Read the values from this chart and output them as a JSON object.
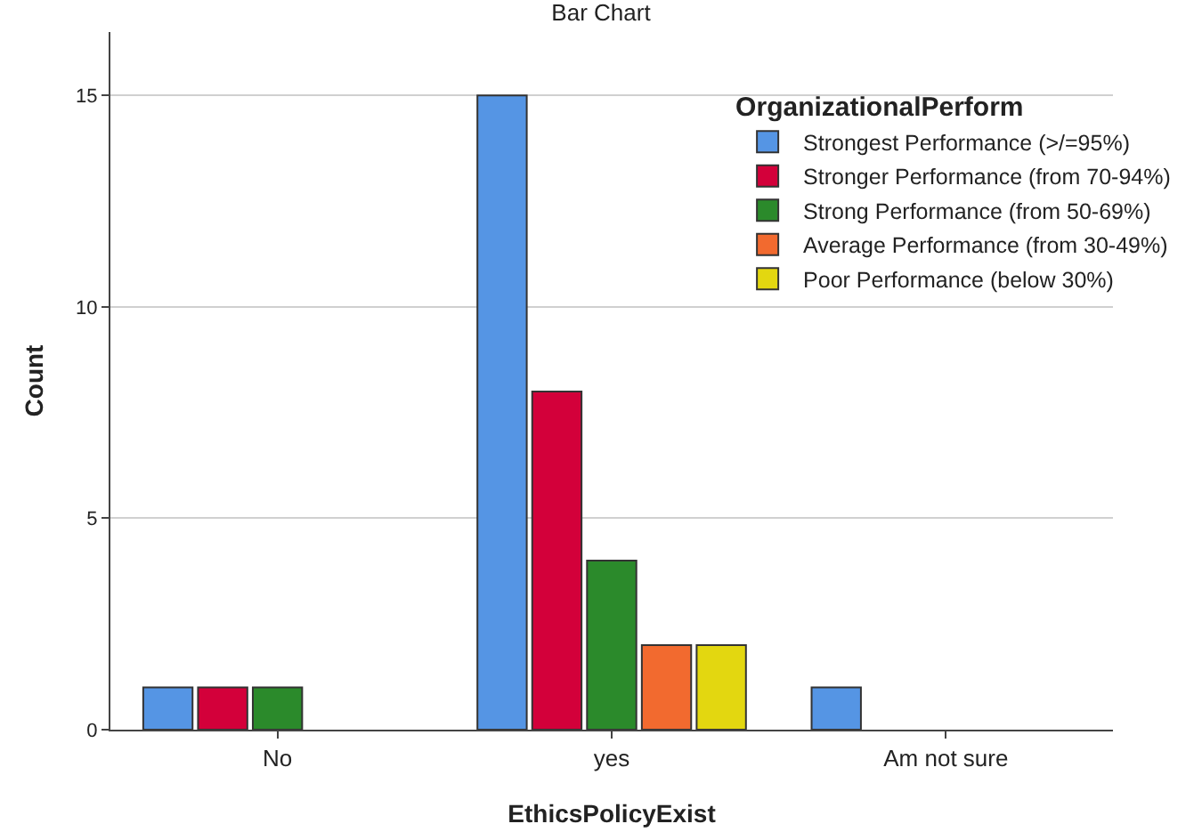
{
  "chart_data": {
    "type": "bar",
    "title": "Bar Chart",
    "xlabel": "EthicsPolicyExist",
    "ylabel": "Count",
    "legend_title": "OrganizationalPerform",
    "categories": [
      "No",
      "yes",
      "Am not sure"
    ],
    "series": [
      {
        "name": "Strongest Performance (>/=95%)",
        "color": "#5595e4",
        "values": [
          1,
          15,
          1
        ]
      },
      {
        "name": "Stronger Performance (from 70-94%)",
        "color": "#d3003a",
        "values": [
          1,
          8,
          null
        ]
      },
      {
        "name": "Strong Performance (from 50-69%)",
        "color": "#2b8a2b",
        "values": [
          1,
          4,
          null
        ]
      },
      {
        "name": "Average Performance (from 30-49%)",
        "color": "#f26a2f",
        "values": [
          null,
          2,
          null
        ]
      },
      {
        "name": "Poor Performance (below 30%)",
        "color": "#e3d710",
        "values": [
          null,
          2,
          null
        ]
      }
    ],
    "ylim": [
      0,
      16.5
    ],
    "yticks": [
      0,
      5,
      10,
      15
    ],
    "grid": "y",
    "legend": "top right"
  }
}
